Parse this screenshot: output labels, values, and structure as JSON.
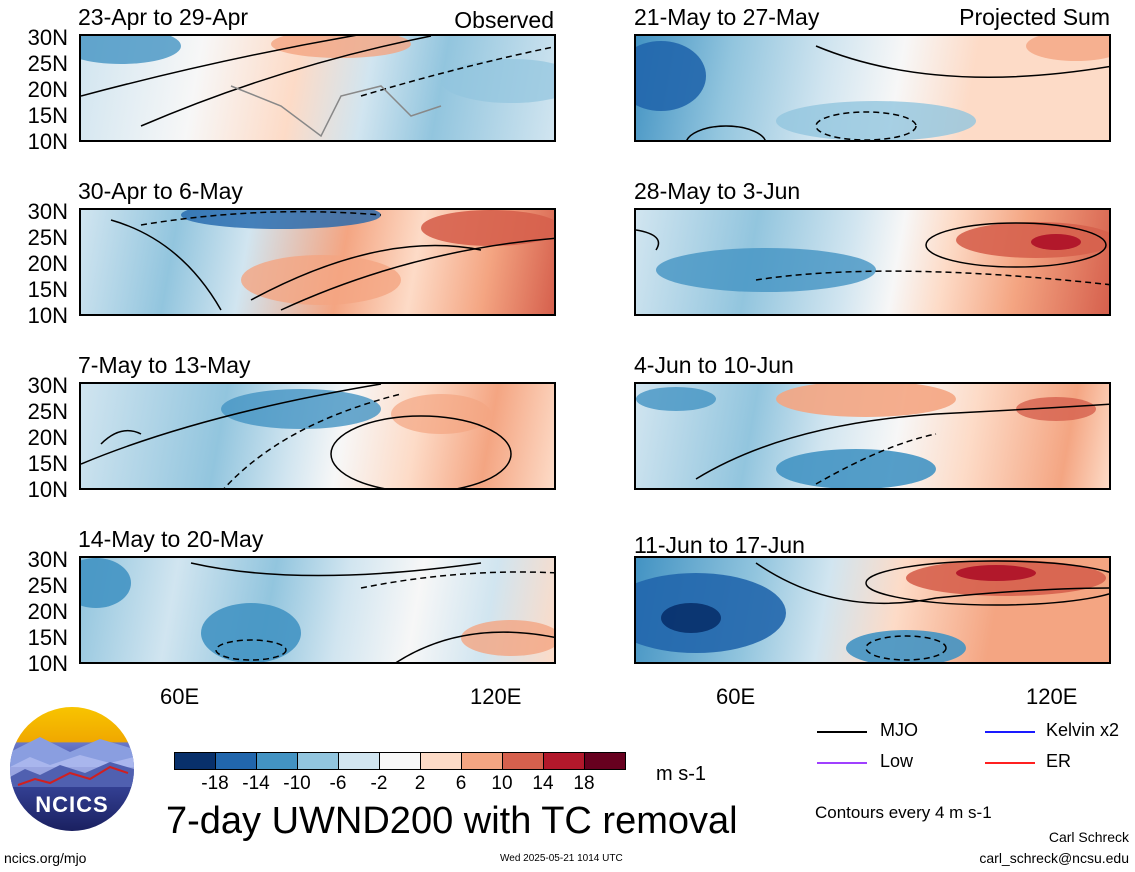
{
  "panels": [
    {
      "period": "23-Apr to 29-Apr",
      "tag": "Observed"
    },
    {
      "period": "21-May to 27-May",
      "tag": "Projected Sum"
    },
    {
      "period": "30-Apr to 6-May",
      "tag": ""
    },
    {
      "period": "28-May to 3-Jun",
      "tag": ""
    },
    {
      "period": "7-May to 13-May",
      "tag": ""
    },
    {
      "period": "4-Jun to 10-Jun",
      "tag": ""
    },
    {
      "period": "14-May to 20-May",
      "tag": ""
    },
    {
      "period": "11-Jun to 17-Jun",
      "tag": ""
    }
  ],
  "lat_labels": [
    "30N",
    "25N",
    "20N",
    "15N",
    "10N"
  ],
  "lon_labels": [
    "60E",
    "120E"
  ],
  "colorbar": {
    "colors": [
      "#08306b",
      "#2166ac",
      "#4393c3",
      "#92c5de",
      "#d1e5f0",
      "#f7f7f7",
      "#fddbc7",
      "#f4a582",
      "#d6604d",
      "#b2182b",
      "#67001f"
    ],
    "labels": [
      "-18",
      "-14",
      "-10",
      "-6",
      "-2",
      "2",
      "6",
      "10",
      "14",
      "18"
    ],
    "units": "m s-1"
  },
  "title": "7-day UWND200 with TC removal",
  "logo_text": "NCICS",
  "footer": {
    "url": "ncics.org/mjo",
    "timestamp": "Wed 2025-05-21 1014 UTC",
    "author": "Carl Schreck",
    "email": "carl_schreck@ncsu.edu",
    "contours": "Contours every 4 m s-1"
  },
  "legend": [
    {
      "label": "MJO",
      "color": "#000000"
    },
    {
      "label": "Kelvin x2",
      "color": "#1a1aff"
    },
    {
      "label": "Low",
      "color": "#a040ff"
    },
    {
      "label": "ER",
      "color": "#ff2020"
    }
  ]
}
